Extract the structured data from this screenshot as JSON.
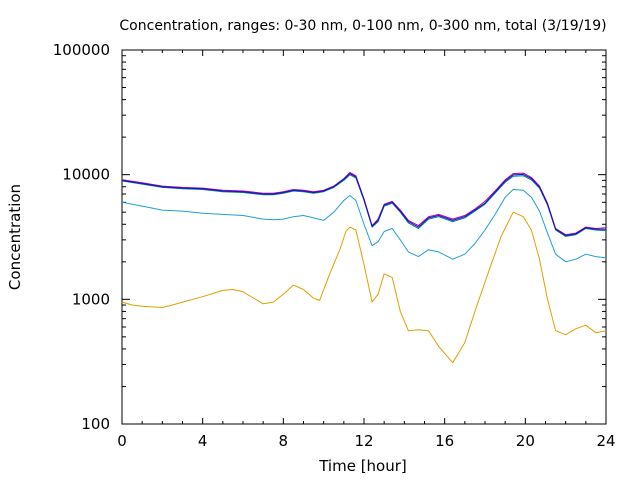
{
  "chart_data": {
    "type": "line",
    "title": "Concentration, ranges: 0-30 nm, 0-100 nm, 0-300 nm, total (3/19/19)",
    "xlabel": "Time [hour]",
    "ylabel": "Concentration",
    "xlim": [
      0,
      24
    ],
    "ylim": [
      100,
      100000
    ],
    "yscale": "log",
    "grid": false,
    "legend": "none",
    "xticks": [
      "0",
      "4",
      "8",
      "12",
      "16",
      "20",
      "24"
    ],
    "xtick_values": [
      0,
      4,
      8,
      12,
      16,
      20,
      24
    ],
    "yticks": [
      "100",
      "1000",
      "10000",
      "100000"
    ],
    "ytick_values": [
      100,
      1000,
      10000,
      100000
    ],
    "series": [
      {
        "color": "#e0a000",
        "x": [
          0,
          0.5,
          1,
          2,
          2.5,
          3,
          4,
          5,
          5.5,
          6,
          7,
          7.5,
          8,
          8.5,
          9,
          9.5,
          9.8,
          10.3,
          10.8,
          11.1,
          11.3,
          11.6,
          12,
          12.4,
          12.7,
          13,
          13.4,
          13.8,
          14.2,
          14.7,
          15.2,
          15.7,
          16.4,
          17,
          17.5,
          18.2,
          18.8,
          19.4,
          19.9,
          20.3,
          20.7,
          21.1,
          21.5,
          22,
          22.5,
          23,
          23.5,
          24
        ],
        "y": [
          950,
          900,
          880,
          860,
          900,
          950,
          1050,
          1180,
          1200,
          1150,
          920,
          950,
          1100,
          1300,
          1200,
          1020,
          980,
          1600,
          2500,
          3500,
          3800,
          3600,
          1900,
          950,
          1100,
          1600,
          1500,
          800,
          560,
          570,
          560,
          420,
          310,
          450,
          800,
          1700,
          3200,
          5000,
          4600,
          3600,
          2100,
          1000,
          560,
          520,
          580,
          620,
          540,
          560
        ]
      },
      {
        "color": "#20a0d0",
        "x": [
          0,
          1,
          2,
          3,
          4,
          5,
          6,
          7,
          7.5,
          8,
          8.5,
          9,
          9.5,
          10,
          10.5,
          11,
          11.3,
          11.6,
          12,
          12.4,
          12.7,
          13,
          13.4,
          13.8,
          14.2,
          14.7,
          15.2,
          15.7,
          16.4,
          17,
          17.5,
          18,
          18.5,
          19,
          19.4,
          19.9,
          20.3,
          20.7,
          21.1,
          21.5,
          22,
          22.5,
          23,
          23.5,
          24
        ],
        "y": [
          6000,
          5600,
          5200,
          5100,
          4900,
          4800,
          4700,
          4400,
          4350,
          4400,
          4600,
          4700,
          4500,
          4300,
          5000,
          6200,
          6800,
          6200,
          4000,
          2700,
          2900,
          3500,
          3700,
          3000,
          2400,
          2200,
          2500,
          2400,
          2100,
          2300,
          2800,
          3600,
          4800,
          6600,
          7600,
          7500,
          6600,
          5100,
          3400,
          2300,
          2000,
          2100,
          2300,
          2200,
          2150
        ]
      },
      {
        "color": "#008080",
        "x": [
          0,
          1,
          2,
          3,
          4,
          5,
          6,
          7,
          7.5,
          8,
          8.5,
          9,
          9.5,
          10,
          10.5,
          11,
          11.3,
          11.6,
          12,
          12.4,
          12.7,
          13,
          13.4,
          13.8,
          14.2,
          14.7,
          15.2,
          15.7,
          16.4,
          17,
          17.5,
          18,
          18.5,
          19,
          19.4,
          19.9,
          20.3,
          20.7,
          21.1,
          21.5,
          22,
          22.5,
          23,
          23.5,
          24
        ],
        "y": [
          8900,
          8400,
          7900,
          7700,
          7600,
          7300,
          7200,
          6900,
          6900,
          7100,
          7400,
          7300,
          7100,
          7300,
          7900,
          9000,
          10000,
          9400,
          6200,
          3800,
          4200,
          5600,
          5900,
          5000,
          4100,
          3700,
          4400,
          4600,
          4200,
          4500,
          5100,
          5800,
          7100,
          8700,
          9700,
          9800,
          9100,
          7800,
          5700,
          3600,
          3200,
          3300,
          3700,
          3600,
          3550
        ]
      },
      {
        "color": "#b000b0",
        "x": [
          0,
          1,
          2,
          3,
          4,
          5,
          6,
          7,
          7.5,
          8,
          8.5,
          9,
          9.5,
          10,
          10.5,
          11,
          11.3,
          11.6,
          12,
          12.4,
          12.7,
          13,
          13.4,
          13.8,
          14.2,
          14.7,
          15.2,
          15.7,
          16.4,
          17,
          17.5,
          18,
          18.5,
          19,
          19.4,
          19.9,
          20.3,
          20.7,
          21.1,
          21.5,
          22,
          22.5,
          23,
          23.5,
          24
        ],
        "y": [
          9100,
          8600,
          8100,
          7900,
          7800,
          7500,
          7400,
          7100,
          7100,
          7300,
          7600,
          7500,
          7300,
          7500,
          8100,
          9300,
          10400,
          9800,
          6400,
          3900,
          4400,
          5800,
          6100,
          5200,
          4300,
          3900,
          4600,
          4800,
          4400,
          4700,
          5300,
          6100,
          7400,
          9100,
          10200,
          10300,
          9500,
          8100,
          5900,
          3700,
          3300,
          3400,
          3800,
          3700,
          3750
        ]
      },
      {
        "color": "#1010d0",
        "x": [
          0,
          1,
          2,
          3,
          4,
          5,
          6,
          7,
          7.5,
          8,
          8.5,
          9,
          9.5,
          10,
          10.5,
          11,
          11.3,
          11.6,
          12,
          12.4,
          12.7,
          13,
          13.4,
          13.8,
          14.2,
          14.7,
          15.2,
          15.7,
          16.4,
          17,
          17.5,
          18,
          18.5,
          19,
          19.4,
          19.9,
          20.3,
          20.7,
          21.1,
          21.5,
          22,
          22.5,
          23,
          23.5,
          24
        ],
        "y": [
          9000,
          8500,
          8000,
          7800,
          7700,
          7400,
          7300,
          7000,
          7000,
          7200,
          7500,
          7400,
          7200,
          7400,
          8000,
          9200,
          10200,
          9600,
          6300,
          3850,
          4300,
          5700,
          6000,
          5100,
          4200,
          3800,
          4500,
          4700,
          4300,
          4600,
          5200,
          5900,
          7250,
          8900,
          9950,
          10050,
          9300,
          7950,
          5800,
          3650,
          3250,
          3350,
          3750,
          3650,
          3650
        ]
      }
    ]
  }
}
